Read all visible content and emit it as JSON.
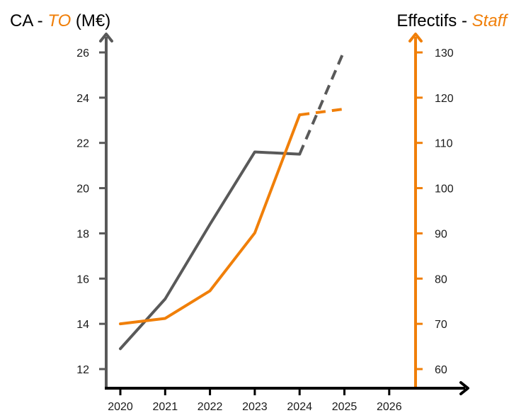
{
  "chart_data": {
    "type": "line",
    "title_left": {
      "prefix": "CA - ",
      "accent": "TO",
      "suffix": " (M€)"
    },
    "title_right": {
      "prefix": "Effectifs - ",
      "accent": "Staff"
    },
    "categories": [
      "2020",
      "2021",
      "2022",
      "2023",
      "2024",
      "2025",
      "2026"
    ],
    "y_left": {
      "ticks": [
        12,
        14,
        16,
        18,
        20,
        22,
        24,
        26
      ],
      "range": [
        12,
        26
      ]
    },
    "y_right": {
      "ticks": [
        60,
        70,
        80,
        90,
        100,
        110,
        120,
        130
      ],
      "range": [
        60,
        130
      ]
    },
    "series": [
      {
        "axis": "left",
        "color": "#595959",
        "points": [
          {
            "x": "2020",
            "y": 12.9
          },
          {
            "x": "2021",
            "y": 15.1
          },
          {
            "x": "2022",
            "y": 18.4
          },
          {
            "x": "2023",
            "y": 21.6
          },
          {
            "x": "2024",
            "y": 21.5
          },
          {
            "x": "2025",
            "y": 26.1,
            "projected": true
          }
        ]
      },
      {
        "axis": "right",
        "color": "#f07f09",
        "points": [
          {
            "x": "2020",
            "y": 70
          },
          {
            "x": "2021",
            "y": 71.2
          },
          {
            "x": "2022",
            "y": 77.3
          },
          {
            "x": "2023",
            "y": 90.1
          },
          {
            "x": "2024",
            "y": 116.2
          },
          {
            "x": "2025",
            "y": 117.5,
            "projected": true
          }
        ]
      }
    ],
    "colors": {
      "left_axis": "#595959",
      "right_axis": "#f07f09",
      "x_axis": "#000000",
      "text": "#000000"
    },
    "grid": false
  }
}
